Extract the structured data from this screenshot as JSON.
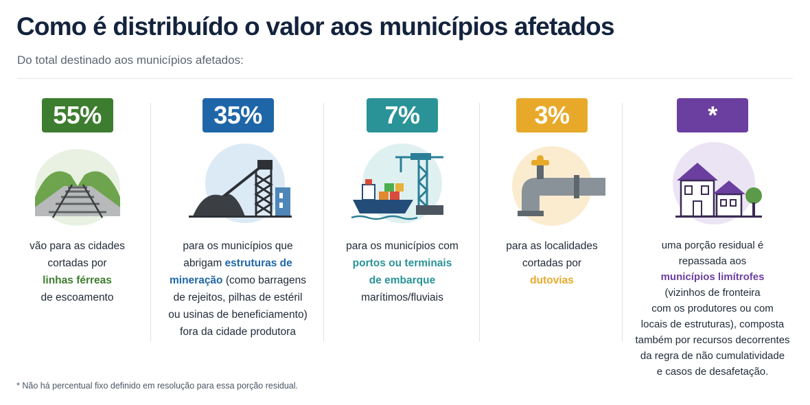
{
  "header": {
    "title": "Como é distribuído o valor aos municípios afetados",
    "subtitle": "Do total destinado aos municípios afetados:"
  },
  "columns": [
    {
      "badge": "55%",
      "color": "#3d7d2f",
      "icon": "railway-tracks-icon",
      "lines": [
        [
          "vão para as cidades"
        ],
        [
          "cortadas por"
        ],
        [
          {
            "hl": "linhas férreas"
          }
        ],
        [
          "de escoamento"
        ]
      ]
    },
    {
      "badge": "35%",
      "color": "#1f66a8",
      "icon": "mining-structure-icon",
      "lines": [
        [
          "para os municípios que"
        ],
        [
          "abrigam ",
          {
            "hl": "estruturas de"
          }
        ],
        [
          {
            "hl": "mineração"
          },
          " (como barragens"
        ],
        [
          "de rejeitos, pilhas de estéril"
        ],
        [
          "ou usinas de beneficiamento)"
        ],
        [
          "fora da cidade produtora"
        ]
      ]
    },
    {
      "badge": "7%",
      "color": "#2a9397",
      "icon": "port-ship-crane-icon",
      "lines": [
        [
          "para os municípios com"
        ],
        [
          {
            "hl": "portos ou terminais"
          }
        ],
        [
          {
            "hl": "de embarque"
          }
        ],
        [
          "marítimos/fluviais"
        ]
      ]
    },
    {
      "badge": "3%",
      "color": "#e8a92a",
      "icon": "pipeline-valve-icon",
      "lines": [
        [
          "para as localidades"
        ],
        [
          "cortadas por"
        ],
        [
          {
            "hl": "dutovias"
          }
        ]
      ]
    },
    {
      "badge": "*",
      "color": "#6b3fa0",
      "icon": "houses-icon",
      "lines": [
        [
          "uma porção residual é"
        ],
        [
          "repassada aos"
        ],
        [
          {
            "hl": "municípios limítrofes"
          }
        ],
        [
          "(vizinhos de fronteira"
        ],
        [
          "com os produtores ou com"
        ],
        [
          "locais de estruturas), composta"
        ],
        [
          "também por recursos decorrentes"
        ],
        [
          "da regra de não cumulatividade"
        ],
        [
          "e casos de desafetação."
        ]
      ]
    }
  ],
  "footnote": "* Não há percentual fixo definido em resolução para essa porção residual."
}
